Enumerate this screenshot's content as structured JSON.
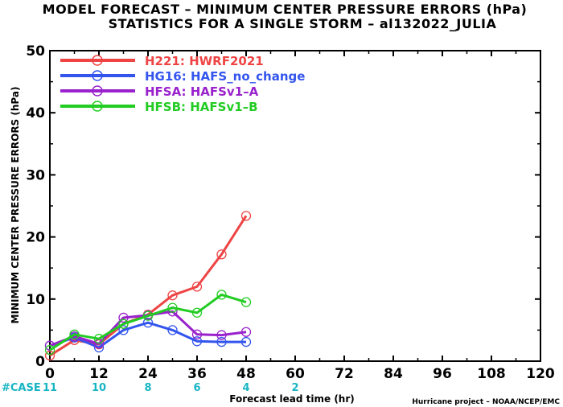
{
  "title": {
    "line1": "MODEL FORECAST – MINIMUM CENTER PRESSURE ERRORS (hPa)",
    "line2": "STATISTICS FOR A SINGLE STORM – al132022_JULIA"
  },
  "credit": "Hurricane project – NOAA/NCEP/EMC",
  "case_label": "#CASE",
  "chart_data": {
    "type": "line",
    "xlabel": "Forecast lead time (hr)",
    "ylabel": "MINIMUM CENTER PRESSURE ERRORS (hPa)",
    "xlim": [
      0,
      120
    ],
    "ylim": [
      0,
      50
    ],
    "xticks": [
      0,
      12,
      24,
      36,
      48,
      60,
      72,
      84,
      96,
      108,
      120
    ],
    "yticks": [
      0,
      10,
      20,
      30,
      40,
      50
    ],
    "grid": false,
    "legend_position": "top-left",
    "x": [
      0,
      6,
      12,
      18,
      24,
      30,
      36,
      42,
      48
    ],
    "case_counts": [
      {
        "x": 0,
        "n": "11"
      },
      {
        "x": 12,
        "n": "10"
      },
      {
        "x": 24,
        "n": "8"
      },
      {
        "x": 36,
        "n": "6"
      },
      {
        "x": 48,
        "n": "4"
      },
      {
        "x": 60,
        "n": "2"
      }
    ],
    "series": [
      {
        "name": "H221: HWRF2021",
        "color": "#ee4444",
        "values": [
          0.9,
          3.4,
          2.7,
          6.0,
          7.5,
          10.6,
          12.0,
          17.2,
          23.4
        ]
      },
      {
        "name": "HG16: HAFS_no_change",
        "color": "#3355ee",
        "values": [
          2.5,
          3.8,
          2.2,
          5.0,
          6.2,
          5.0,
          3.2,
          3.1,
          3.1
        ]
      },
      {
        "name": "HFSA: HAFSv1–A",
        "color": "#9922cc",
        "values": [
          2.5,
          4.0,
          2.8,
          7.0,
          7.4,
          8.0,
          4.3,
          4.2,
          4.7
        ]
      },
      {
        "name": "HFSB: HAFSv1–B",
        "color": "#22cc22",
        "values": [
          1.8,
          4.3,
          3.6,
          6.0,
          7.3,
          8.6,
          7.8,
          10.7,
          9.5
        ]
      }
    ]
  }
}
